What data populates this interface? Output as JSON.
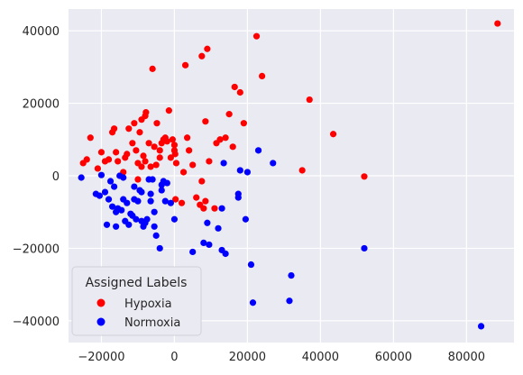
{
  "chart_data": {
    "type": "scatter",
    "title": "",
    "xlabel": "",
    "ylabel": "",
    "xlim": [
      -29000,
      93000
    ],
    "ylim": [
      -46000,
      46000
    ],
    "xticks": [
      -20000,
      0,
      20000,
      40000,
      60000,
      80000
    ],
    "yticks": [
      -40000,
      -20000,
      0,
      20000,
      40000
    ],
    "xtick_labels": [
      "−20000",
      "0",
      "20000",
      "40000",
      "60000",
      "80000"
    ],
    "ytick_labels": [
      "−40000",
      "−20000",
      "0",
      "20000",
      "40000"
    ],
    "grid": true,
    "legend": {
      "title": "Assigned Labels",
      "position": "lower-left",
      "entries": [
        {
          "label": "Hypoxia",
          "color": "#ff0000"
        },
        {
          "label": "Normoxia",
          "color": "#0000ff"
        }
      ]
    },
    "colors": {
      "background": "#eaeaf2",
      "grid": "#ffffff",
      "Hypoxia": "#ff0000",
      "Normoxia": "#0000ff"
    },
    "series": [
      {
        "name": "Hypoxia",
        "points": [
          [
            -25000,
            3500
          ],
          [
            -24000,
            4500
          ],
          [
            -23000,
            10500
          ],
          [
            -21000,
            2000
          ],
          [
            -20000,
            6500
          ],
          [
            -19000,
            4000
          ],
          [
            -18000,
            4500
          ],
          [
            -17000,
            12000
          ],
          [
            -16500,
            13000
          ],
          [
            -16000,
            6500
          ],
          [
            -15500,
            4000
          ],
          [
            -14000,
            1000
          ],
          [
            -13500,
            5000
          ],
          [
            -13000,
            6000
          ],
          [
            -12500,
            13000
          ],
          [
            -11500,
            9000
          ],
          [
            -11000,
            14500
          ],
          [
            -10500,
            7000
          ],
          [
            -10000,
            3500
          ],
          [
            -10000,
            -1000
          ],
          [
            -9500,
            12000
          ],
          [
            -9000,
            15500
          ],
          [
            -9000,
            2500
          ],
          [
            -8500,
            5500
          ],
          [
            -8000,
            4000
          ],
          [
            -8000,
            16500
          ],
          [
            -7800,
            17500
          ],
          [
            -7000,
            9000
          ],
          [
            -6500,
            2500
          ],
          [
            -6000,
            29500
          ],
          [
            -5500,
            8000
          ],
          [
            -5000,
            3000
          ],
          [
            -4800,
            14500
          ],
          [
            -4000,
            7000
          ],
          [
            -4000,
            5000
          ],
          [
            -3500,
            9000
          ],
          [
            -3000,
            10000
          ],
          [
            -2500,
            10500
          ],
          [
            -2000,
            9500
          ],
          [
            -1500,
            18000
          ],
          [
            -1000,
            5000
          ],
          [
            -500,
            10000
          ],
          [
            0,
            8500
          ],
          [
            0,
            7000
          ],
          [
            200,
            6000
          ],
          [
            500,
            3500
          ],
          [
            300,
            -6500
          ],
          [
            2000,
            -7500
          ],
          [
            2500,
            1000
          ],
          [
            3000,
            30500
          ],
          [
            3500,
            10500
          ],
          [
            4000,
            7000
          ],
          [
            5000,
            3000
          ],
          [
            6000,
            -6000
          ],
          [
            7000,
            -8000
          ],
          [
            7500,
            33000
          ],
          [
            8000,
            -9000
          ],
          [
            8500,
            -7000
          ],
          [
            8500,
            15000
          ],
          [
            9000,
            35000
          ],
          [
            9500,
            4000
          ],
          [
            11000,
            -9000
          ],
          [
            11500,
            9000
          ],
          [
            12500,
            10000
          ],
          [
            14000,
            10500
          ],
          [
            15000,
            17000
          ],
          [
            16000,
            8000
          ],
          [
            16500,
            24500
          ],
          [
            18000,
            23000
          ],
          [
            19000,
            14500
          ],
          [
            22500,
            38500
          ],
          [
            24000,
            27500
          ],
          [
            35000,
            1500
          ],
          [
            37000,
            21000
          ],
          [
            43500,
            11500
          ],
          [
            52000,
            -200
          ],
          [
            88500,
            42000
          ],
          [
            7500,
            -1500
          ]
        ]
      },
      {
        "name": "Normoxia",
        "points": [
          [
            -25500,
            -500
          ],
          [
            -21500,
            -5000
          ],
          [
            -20500,
            -5500
          ],
          [
            -20000,
            200
          ],
          [
            -19000,
            -4500
          ],
          [
            -18500,
            -13500
          ],
          [
            -18000,
            -6500
          ],
          [
            -17500,
            -1500
          ],
          [
            -17000,
            -8500
          ],
          [
            -16500,
            -3000
          ],
          [
            -16000,
            -10000
          ],
          [
            -16000,
            -14000
          ],
          [
            -15500,
            -9000
          ],
          [
            -15000,
            0
          ],
          [
            -14500,
            -9500
          ],
          [
            -14000,
            -6500
          ],
          [
            -14000,
            -500
          ],
          [
            -13500,
            -12500
          ],
          [
            -13000,
            -7500
          ],
          [
            -12500,
            -13500
          ],
          [
            -12000,
            -10500
          ],
          [
            -11500,
            -11000
          ],
          [
            -11000,
            -3000
          ],
          [
            -11000,
            -6500
          ],
          [
            -10500,
            -12000
          ],
          [
            -10000,
            -7000
          ],
          [
            -9500,
            -4000
          ],
          [
            -9000,
            -12500
          ],
          [
            -9000,
            -4500
          ],
          [
            -8500,
            -14000
          ],
          [
            -8000,
            -13000
          ],
          [
            -7500,
            -12000
          ],
          [
            -7000,
            -1000
          ],
          [
            -6500,
            -5000
          ],
          [
            -6500,
            -7000
          ],
          [
            -6000,
            -1000
          ],
          [
            -5500,
            -14000
          ],
          [
            -5500,
            -10000
          ],
          [
            -5000,
            -16500
          ],
          [
            -4000,
            -20000
          ],
          [
            -3500,
            -2500
          ],
          [
            -3500,
            -4000
          ],
          [
            -3000,
            -1500
          ],
          [
            -2500,
            -7000
          ],
          [
            -2000,
            -2000
          ],
          [
            -1000,
            -7500
          ],
          [
            0,
            -12000
          ],
          [
            5000,
            -21000
          ],
          [
            8000,
            -18500
          ],
          [
            9500,
            -19000
          ],
          [
            9000,
            -13000
          ],
          [
            12000,
            -14500
          ],
          [
            13000,
            -20500
          ],
          [
            14000,
            -21500
          ],
          [
            17500,
            -5000
          ],
          [
            17500,
            -6000
          ],
          [
            18000,
            1500
          ],
          [
            19500,
            -12000
          ],
          [
            20000,
            1000
          ],
          [
            21000,
            -24500
          ],
          [
            21500,
            -35000
          ],
          [
            23000,
            7000
          ],
          [
            27000,
            3500
          ],
          [
            31500,
            -34500
          ],
          [
            32000,
            -27500
          ],
          [
            52000,
            -20000
          ],
          [
            84000,
            -41500
          ],
          [
            13500,
            3500
          ],
          [
            13000,
            -9000
          ]
        ]
      }
    ]
  }
}
